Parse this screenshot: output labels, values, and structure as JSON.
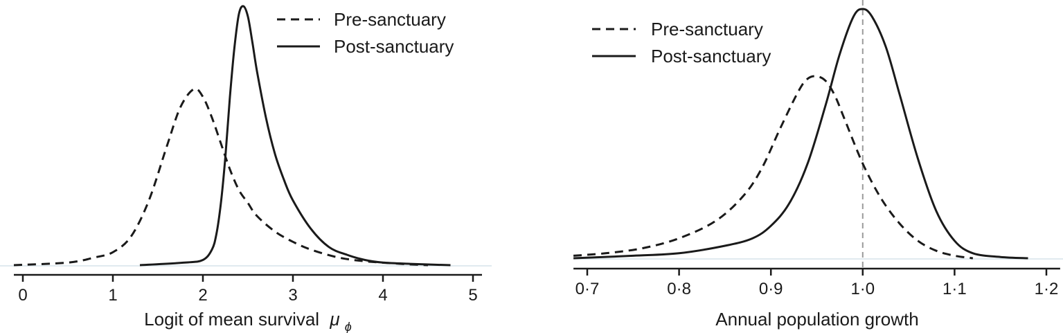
{
  "chart_data": [
    {
      "type": "line",
      "title": "",
      "xlabel": "Logit of mean survival",
      "xlabel_symbol": "μ",
      "xlabel_subscript": "ϕ",
      "ylabel": "",
      "xlim": [
        -0.1,
        5.1
      ],
      "x_ticks": [
        0,
        1,
        2,
        3,
        4,
        5
      ],
      "x_tick_labels": [
        "0",
        "1",
        "2",
        "3",
        "4",
        "5"
      ],
      "grid": false,
      "legend_position": "top-right",
      "series": [
        {
          "name": "Pre-sanctuary",
          "line_style": "dashed",
          "color": "#1a1a1a",
          "x": [
            -0.1,
            0.5,
            0.8,
            1.0,
            1.2,
            1.4,
            1.6,
            1.75,
            1.9,
            2.0,
            2.1,
            2.2,
            2.3,
            2.4,
            2.5,
            2.6,
            2.8,
            3.0,
            3.2,
            3.5,
            3.8,
            4.2,
            4.5
          ],
          "y": [
            0.0,
            0.01,
            0.03,
            0.05,
            0.11,
            0.25,
            0.46,
            0.61,
            0.68,
            0.65,
            0.57,
            0.47,
            0.37,
            0.29,
            0.24,
            0.19,
            0.13,
            0.09,
            0.06,
            0.03,
            0.015,
            0.005,
            0.0
          ]
        },
        {
          "name": "Post-sanctuary",
          "line_style": "solid",
          "color": "#1a1a1a",
          "x": [
            1.3,
            1.8,
            2.0,
            2.1,
            2.15,
            2.2,
            2.25,
            2.3,
            2.35,
            2.4,
            2.45,
            2.5,
            2.55,
            2.6,
            2.7,
            2.8,
            2.9,
            3.0,
            3.2,
            3.4,
            3.6,
            3.8,
            4.0,
            4.3,
            4.75
          ],
          "y": [
            0.0,
            0.01,
            0.02,
            0.06,
            0.12,
            0.24,
            0.42,
            0.65,
            0.84,
            0.97,
            1.0,
            0.96,
            0.86,
            0.75,
            0.57,
            0.43,
            0.33,
            0.25,
            0.14,
            0.07,
            0.04,
            0.02,
            0.01,
            0.005,
            0.0
          ]
        }
      ]
    },
    {
      "type": "line",
      "title": "",
      "xlabel": "Annual population growth",
      "ylabel": "",
      "xlim": [
        0.685,
        1.215
      ],
      "x_ticks": [
        0.7,
        0.8,
        0.9,
        1.0,
        1.1,
        1.2
      ],
      "x_tick_labels": [
        "0·7",
        "0·8",
        "0·9",
        "1·0",
        "1·1",
        "1·2"
      ],
      "reference_line_x": 1.0,
      "grid": false,
      "legend_position": "top-left",
      "series": [
        {
          "name": "Pre-sanctuary",
          "line_style": "dashed",
          "color": "#1a1a1a",
          "x": [
            0.685,
            0.72,
            0.76,
            0.8,
            0.84,
            0.87,
            0.89,
            0.91,
            0.93,
            0.94,
            0.95,
            0.96,
            0.97,
            0.98,
            1.0,
            1.02,
            1.04,
            1.06,
            1.08,
            1.1,
            1.12
          ],
          "y": [
            0.01,
            0.02,
            0.04,
            0.08,
            0.15,
            0.25,
            0.36,
            0.52,
            0.67,
            0.72,
            0.73,
            0.71,
            0.65,
            0.56,
            0.38,
            0.24,
            0.14,
            0.07,
            0.03,
            0.01,
            0.0
          ]
        },
        {
          "name": "Post-sanctuary",
          "line_style": "solid",
          "color": "#1a1a1a",
          "x": [
            0.685,
            0.75,
            0.8,
            0.85,
            0.88,
            0.9,
            0.92,
            0.94,
            0.96,
            0.975,
            0.99,
            1.0,
            1.01,
            1.025,
            1.04,
            1.06,
            1.08,
            1.1,
            1.12,
            1.15,
            1.18
          ],
          "y": [
            0.0,
            0.01,
            0.02,
            0.05,
            0.08,
            0.13,
            0.22,
            0.38,
            0.62,
            0.82,
            0.97,
            1.0,
            0.97,
            0.85,
            0.66,
            0.4,
            0.19,
            0.07,
            0.02,
            0.005,
            0.0
          ]
        }
      ]
    }
  ]
}
